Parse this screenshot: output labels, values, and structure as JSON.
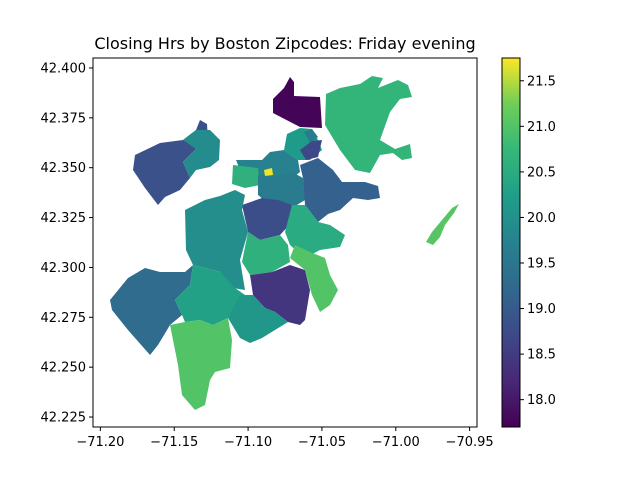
{
  "chart_data": {
    "type": "choropleth",
    "title": "Closing Hrs by Boston Zipcodes: Friday evening",
    "xlabel": "",
    "ylabel": "",
    "xlim": [
      -71.205,
      -70.945
    ],
    "ylim": [
      42.22,
      42.405
    ],
    "x_ticks": [
      "−71.20",
      "−71.15",
      "−71.10",
      "−71.05",
      "−71.00",
      "−70.95"
    ],
    "x_tick_values": [
      -71.2,
      -71.15,
      -71.1,
      -71.05,
      -71.0,
      -70.95
    ],
    "y_ticks": [
      "42.225",
      "42.250",
      "42.275",
      "42.300",
      "42.325",
      "42.350",
      "42.375",
      "42.400"
    ],
    "y_tick_values": [
      42.225,
      42.25,
      42.275,
      42.3,
      42.325,
      42.35,
      42.375,
      42.4
    ],
    "grid": false,
    "colormap": "viridis",
    "colorbar": {
      "range": [
        17.7,
        21.75
      ],
      "ticks": [
        "18.0",
        "18.5",
        "19.0",
        "19.5",
        "20.0",
        "20.5",
        "21.0",
        "21.5"
      ],
      "tick_values": [
        18.0,
        18.5,
        19.0,
        19.5,
        20.0,
        20.5,
        21.0,
        21.5
      ]
    },
    "regions": [
      {
        "id": "charlestown-north",
        "value": 17.75
      },
      {
        "id": "east-boston",
        "value": 20.7
      },
      {
        "id": "brighton",
        "value": 18.85
      },
      {
        "id": "allston",
        "value": 19.9
      },
      {
        "id": "fenway",
        "value": 20.6
      },
      {
        "id": "kenmore",
        "value": 21.7
      },
      {
        "id": "back-bay",
        "value": 19.7
      },
      {
        "id": "beacon-hill",
        "value": 19.6
      },
      {
        "id": "north-end",
        "value": 20.2
      },
      {
        "id": "downtown",
        "value": 18.7
      },
      {
        "id": "south-end",
        "value": 19.6
      },
      {
        "id": "roxbury",
        "value": 18.8
      },
      {
        "id": "south-boston",
        "value": 19.1
      },
      {
        "id": "dorchester-north",
        "value": 20.5
      },
      {
        "id": "jamaica-plain",
        "value": 19.95
      },
      {
        "id": "roxbury-south",
        "value": 20.6
      },
      {
        "id": "west-roxbury",
        "value": 19.3
      },
      {
        "id": "roslindale",
        "value": 20.3
      },
      {
        "id": "mattapan",
        "value": 20.1
      },
      {
        "id": "dorchester-center",
        "value": 18.4
      },
      {
        "id": "dorchester-east",
        "value": 21.0
      },
      {
        "id": "hyde-park",
        "value": 21.0
      },
      {
        "id": "winthrop-strip",
        "value": 21.05
      }
    ]
  }
}
